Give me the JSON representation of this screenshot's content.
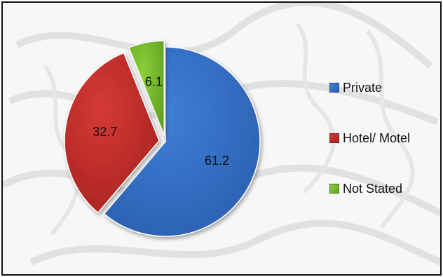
{
  "chart_data": {
    "type": "pie",
    "title": "",
    "slices": [
      {
        "label": "Private",
        "value": 61.2,
        "value_label": "61.2",
        "color": "#3f7fd6",
        "dark": "#2a5fb0"
      },
      {
        "label": "Hotel/ Motel",
        "value": 32.7,
        "value_label": "32.7",
        "color": "#d43a36",
        "dark": "#a8231f"
      },
      {
        "label": "Not Stated",
        "value": 6.1,
        "value_label": "6.1",
        "color": "#8ccf3a",
        "dark": "#5fa020"
      }
    ],
    "start_angle_deg": 0,
    "exploded_slices": [
      "Hotel/ Motel",
      "Not Stated"
    ],
    "legend_position": "right",
    "background": "light grey tribal pattern"
  }
}
